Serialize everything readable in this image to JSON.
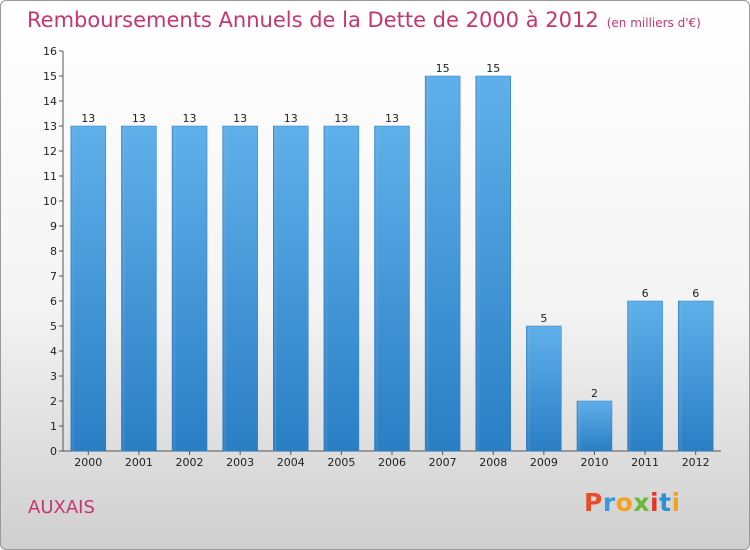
{
  "title": "Remboursements Annuels de la Dette de 2000 à 2012",
  "unit": "(en milliers d'€)",
  "commune": "AUXAIS",
  "logo": {
    "text": "Proxiti",
    "letter_colors": [
      "#e94b2b",
      "#3b9ad9",
      "#f4a21c",
      "#69b83a",
      "#e5332a",
      "#2f8fd6",
      "#f4a21c"
    ]
  },
  "chart_data": {
    "type": "bar",
    "categories": [
      "2000",
      "2001",
      "2002",
      "2003",
      "2004",
      "2005",
      "2006",
      "2007",
      "2008",
      "2009",
      "2010",
      "2011",
      "2012"
    ],
    "values": [
      13,
      13,
      13,
      13,
      13,
      13,
      13,
      15,
      15,
      5,
      2,
      6,
      6
    ],
    "title": "Remboursements Annuels de la Dette de 2000 à 2012",
    "ylim": [
      0,
      16
    ],
    "yticks": [
      0,
      1,
      2,
      3,
      4,
      5,
      6,
      7,
      8,
      9,
      10,
      11,
      12,
      13,
      14,
      15,
      16
    ],
    "grid": false,
    "bar_color": "#3a8fd4"
  }
}
